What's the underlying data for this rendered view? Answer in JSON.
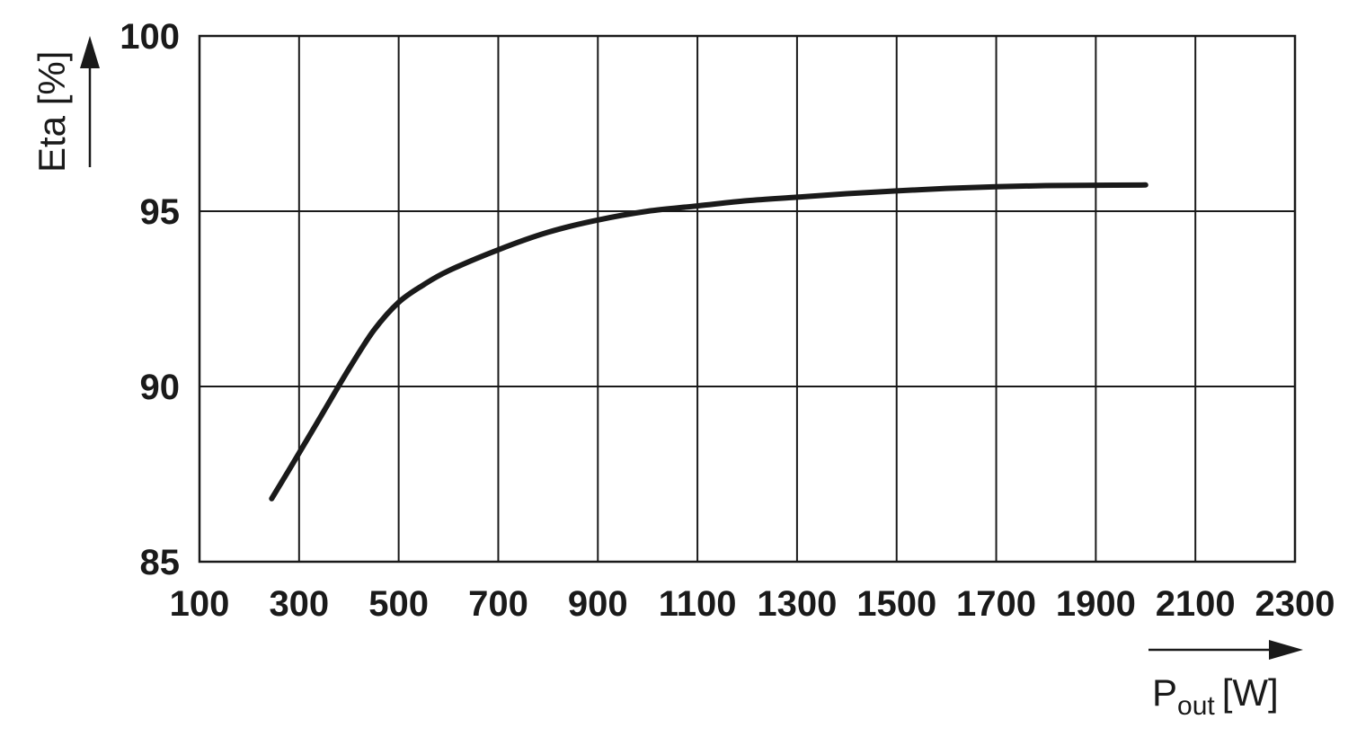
{
  "chart_data": {
    "type": "line",
    "title": "",
    "xlabel": {
      "main": "P",
      "sub": "out",
      "unit": "[W]"
    },
    "ylabel": "Eta [%]",
    "xlim": [
      100,
      2300
    ],
    "ylim": [
      85,
      100
    ],
    "x_ticks": [
      "100",
      "300",
      "500",
      "700",
      "900",
      "1100",
      "1300",
      "1500",
      "1700",
      "1900",
      "2100",
      "2300"
    ],
    "y_ticks": [
      "85",
      "90",
      "95",
      "100"
    ],
    "grid": true,
    "legend": "none",
    "line_color": "#1a1a1a",
    "series": [
      {
        "x": [
          245,
          300,
          350,
          400,
          450,
          500,
          550,
          600,
          700,
          800,
          900,
          1000,
          1100,
          1200,
          1300,
          1400,
          1500,
          1600,
          1700,
          1800,
          1900,
          2000
        ],
        "y": [
          86.8,
          88.1,
          89.3,
          90.5,
          91.6,
          92.4,
          92.9,
          93.3,
          93.9,
          94.4,
          94.75,
          95.0,
          95.15,
          95.3,
          95.4,
          95.5,
          95.58,
          95.65,
          95.7,
          95.73,
          95.74,
          95.75
        ]
      }
    ]
  }
}
